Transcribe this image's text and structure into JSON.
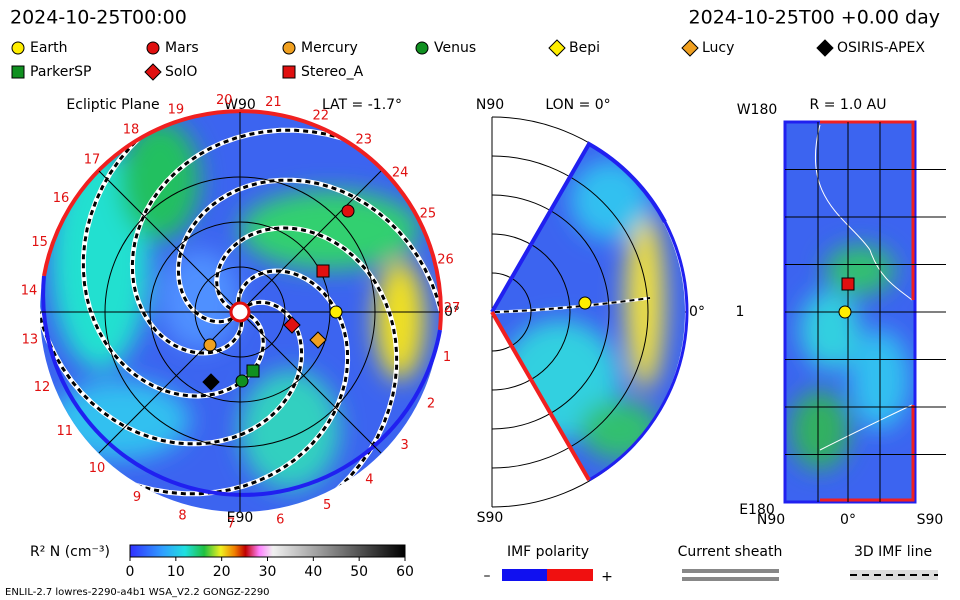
{
  "header": {
    "time_left": "2024-10-25T00:00",
    "time_right": "2024-10-25T00 +0.00 day"
  },
  "legend": [
    "Earth",
    "Mars",
    "Mercury",
    "Venus",
    "Bepi",
    "Lucy",
    "OSIRIS-APEX",
    "ParkerSP",
    "SolO",
    "Stereo_A"
  ],
  "ecliptic": {
    "title": "Ecliptic Plane",
    "top": "W90",
    "lat": "LAT = -1.7°",
    "bottom": "E90",
    "right": "0°",
    "rim_labels": [
      "1",
      "2",
      "3",
      "4",
      "5",
      "6",
      "7",
      "8",
      "9",
      "10",
      "11",
      "12",
      "13",
      "14",
      "15",
      "16",
      "17",
      "18",
      "19",
      "20",
      "21",
      "22",
      "23",
      "24",
      "25",
      "26",
      "27"
    ]
  },
  "meridional": {
    "top": "N90",
    "lon": "LON = 0°",
    "bottom": "S90",
    "right": "0°"
  },
  "radial": {
    "title": "R = 1.0 AU",
    "top_left": "W180",
    "mid_left": "1",
    "bottom_left": "E180",
    "bottom": [
      "N90",
      "0°",
      "S90"
    ]
  },
  "colorbar": {
    "label": "R² N (cm⁻³)",
    "lim": [
      0,
      60
    ],
    "ticks": [
      0,
      10,
      20,
      30,
      40,
      50,
      60
    ]
  },
  "keys": {
    "imf": "IMF polarity",
    "minus": "–",
    "plus": "+",
    "sheath": "Current sheath",
    "line": "3D IMF line"
  },
  "footer": "ENLIL-2.7 lowres-2290-a4b1 WSA_V2.2 GONGZ-2290"
}
